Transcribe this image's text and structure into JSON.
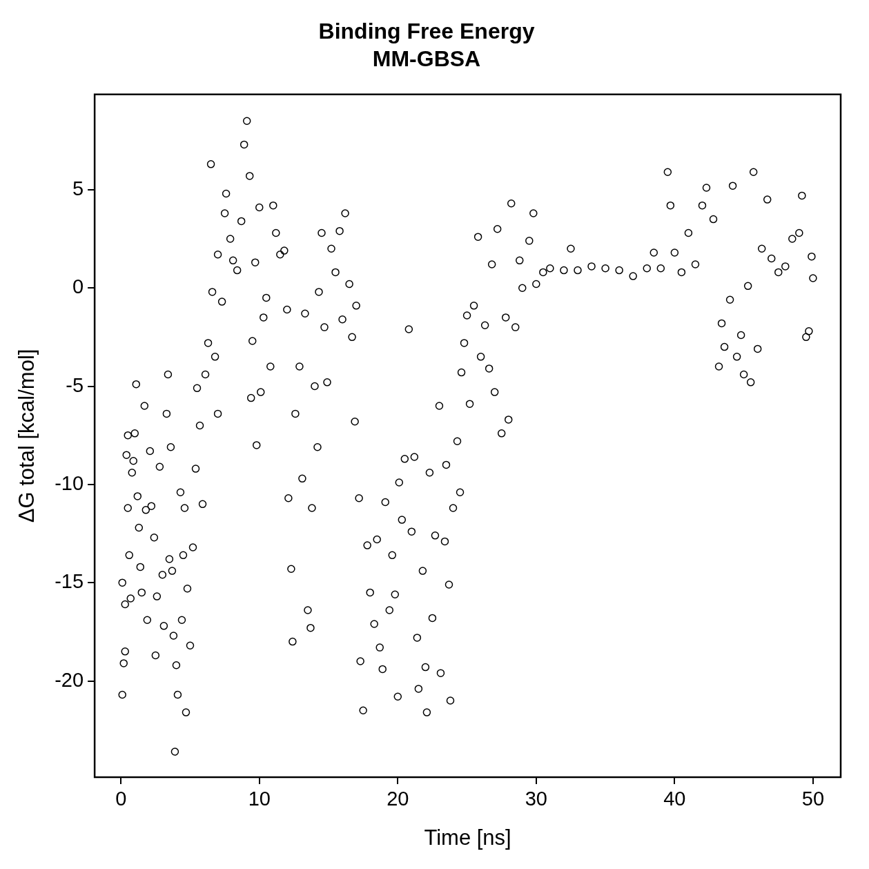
{
  "chart_data": {
    "type": "scatter",
    "title": "Binding Free Energy",
    "subtitle": "MM-GBSA",
    "xlabel": "Time [ns]",
    "ylabel": "ΔG total [kcal/mol]",
    "x": [
      0.1,
      0.1,
      0.2,
      0.3,
      0.3,
      0.4,
      0.5,
      0.5,
      0.6,
      0.7,
      0.8,
      0.9,
      1.0,
      1.1,
      1.2,
      1.3,
      1.4,
      1.5,
      1.7,
      1.8,
      1.9,
      2.1,
      2.2,
      2.4,
      2.5,
      2.6,
      2.8,
      3.0,
      3.1,
      3.3,
      3.4,
      3.5,
      3.6,
      3.7,
      3.8,
      3.9,
      4.0,
      4.1,
      4.3,
      4.4,
      4.5,
      4.6,
      4.7,
      4.8,
      5.0,
      5.2,
      5.4,
      5.5,
      5.7,
      5.9,
      6.1,
      6.3,
      6.5,
      6.6,
      6.8,
      7.0,
      7.0,
      7.3,
      7.5,
      7.6,
      7.9,
      8.1,
      8.4,
      8.7,
      8.9,
      9.1,
      9.3,
      9.4,
      9.5,
      9.7,
      9.8,
      10.0,
      10.1,
      10.3,
      10.5,
      10.8,
      11.0,
      11.2,
      11.5,
      11.8,
      12.0,
      12.1,
      12.3,
      12.4,
      12.6,
      12.9,
      13.1,
      13.3,
      13.5,
      13.7,
      13.8,
      14.0,
      14.2,
      14.3,
      14.5,
      14.7,
      14.9,
      15.2,
      15.5,
      15.8,
      16.0,
      16.2,
      16.5,
      16.7,
      16.9,
      17.0,
      17.2,
      17.3,
      17.5,
      17.8,
      18.0,
      18.3,
      18.5,
      18.7,
      18.9,
      19.1,
      19.4,
      19.6,
      19.8,
      20.0,
      20.1,
      20.3,
      20.5,
      20.8,
      21.0,
      21.2,
      21.4,
      21.5,
      21.8,
      22.0,
      22.1,
      22.3,
      22.5,
      22.7,
      23.0,
      23.1,
      23.4,
      23.5,
      23.7,
      23.8,
      24.0,
      24.3,
      24.5,
      24.6,
      24.8,
      25.0,
      25.2,
      25.5,
      25.8,
      26.0,
      26.3,
      26.6,
      26.8,
      27.0,
      27.2,
      27.5,
      27.8,
      28.0,
      28.2,
      28.5,
      28.8,
      29.0,
      29.5,
      29.8,
      30.0,
      30.5,
      31,
      32,
      32.5,
      33,
      34,
      35,
      36,
      37,
      38,
      38.5,
      39,
      39.5,
      39.7,
      40,
      40.5,
      41,
      41.5,
      42,
      42.3,
      42.8,
      43.2,
      43.4,
      43.6,
      44,
      44.2,
      44.5,
      44.8,
      45,
      45.3,
      45.5,
      45.7,
      46,
      46.3,
      46.7,
      47,
      47.5,
      48,
      48.5,
      49,
      49.2,
      49.5,
      49.7,
      49.9,
      50
    ],
    "values": [
      -20.7,
      -15,
      -19.1,
      -16.1,
      -18.5,
      -8.5,
      -11.2,
      -7.5,
      -13.6,
      -15.8,
      -9.4,
      -8.8,
      -7.4,
      -4.9,
      -10.6,
      -12.2,
      -14.2,
      -15.5,
      -6.0,
      -11.3,
      -16.9,
      -8.3,
      -11.1,
      -12.7,
      -18.7,
      -15.7,
      -9.1,
      -14.6,
      -17.2,
      -6.4,
      -4.4,
      -13.8,
      -8.1,
      -14.4,
      -17.7,
      -23.6,
      -19.2,
      -20.7,
      -10.4,
      -16.9,
      -13.6,
      -11.2,
      -21.6,
      -15.3,
      -18.2,
      -13.2,
      -9.2,
      -5.1,
      -7,
      -11,
      -4.4,
      -2.8,
      6.3,
      -0.2,
      -3.5,
      -6.4,
      1.7,
      -0.7,
      3.8,
      4.8,
      2.5,
      1.4,
      0.9,
      3.4,
      7.3,
      8.5,
      5.7,
      -5.6,
      -2.7,
      1.3,
      -8,
      4.1,
      -5.3,
      -1.5,
      -0.5,
      -4,
      4.2,
      2.8,
      1.7,
      1.9,
      -1.1,
      -10.7,
      -14.3,
      -18,
      -6.4,
      -4,
      -9.7,
      -1.3,
      -16.4,
      -17.3,
      -11.2,
      -5,
      -8.1,
      -0.2,
      2.8,
      -2,
      -4.8,
      2,
      0.8,
      2.9,
      -1.6,
      3.8,
      0.2,
      -2.5,
      -6.8,
      -0.9,
      -10.7,
      -19,
      -21.5,
      -13.1,
      -15.5,
      -17.1,
      -12.8,
      -18.3,
      -19.4,
      -10.9,
      -16.4,
      -13.6,
      -15.6,
      -20.8,
      -9.9,
      -11.8,
      -8.7,
      -2.1,
      -12.4,
      -8.6,
      -17.8,
      -20.4,
      -14.4,
      -19.3,
      -21.6,
      -9.4,
      -16.8,
      -12.6,
      -6,
      -19.6,
      -12.9,
      -9,
      -15.1,
      -21,
      -11.2,
      -7.8,
      -10.4,
      -4.3,
      -2.8,
      -1.4,
      -5.9,
      -0.9,
      2.6,
      -3.5,
      -1.9,
      -4.1,
      1.2,
      -5.3,
      3.0,
      -7.4,
      -1.5,
      -6.7,
      4.3,
      -2,
      1.4,
      0,
      2.4,
      3.8,
      0.2,
      0.8,
      1,
      0.9,
      2,
      0.9,
      1.1,
      1,
      0.9,
      0.6,
      1,
      1.8,
      1,
      5.9,
      4.2,
      1.8,
      0.8,
      2.8,
      1.2,
      4.2,
      5.1,
      3.5,
      -4,
      -1.8,
      -3,
      -0.6,
      5.2,
      -3.5,
      -2.4,
      -4.4,
      0.1,
      -4.8,
      5.9,
      -3.1,
      2,
      4.5,
      1.5,
      0.8,
      1.1,
      2.5,
      2.8,
      4.7,
      -2.5,
      -2.2,
      1.6,
      0.5
    ],
    "color": "#000000",
    "marker": "circle",
    "grid": false,
    "legend": false,
    "xlim": [
      -1.9,
      52
    ],
    "xticks": [
      0,
      10,
      20,
      30,
      40,
      50
    ],
    "ylim": [
      -24.9,
      9.85
    ],
    "yticks": [
      -20,
      -15,
      -10,
      -5,
      0,
      5
    ]
  }
}
